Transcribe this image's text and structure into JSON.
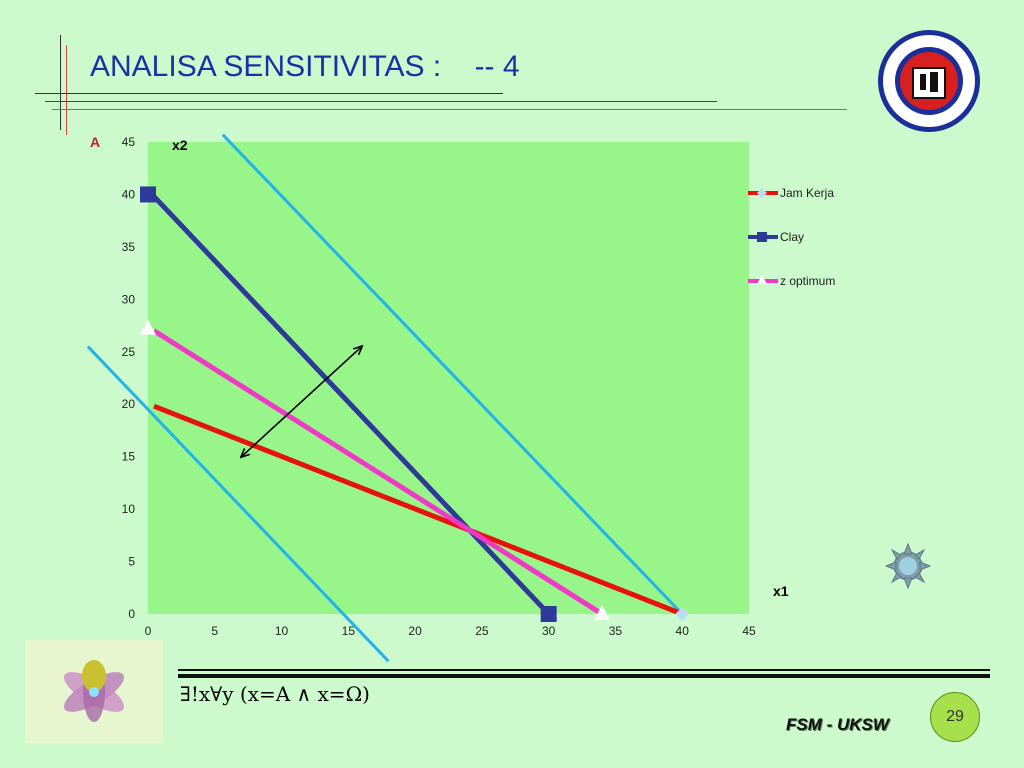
{
  "slide": {
    "title": "ANALISA SENSITIVITAS :    -- 4",
    "point_label": "A",
    "formula": "∃!x∀y (x=A ∧ x=Ω)",
    "footer": "FSM - UKSW",
    "page_number": "29"
  },
  "chart_data": {
    "type": "line",
    "title": "",
    "xlabel": "x1",
    "ylabel": "x2",
    "xlim": [
      0,
      45
    ],
    "ylim": [
      0,
      45
    ],
    "xticks": [
      0,
      5,
      10,
      15,
      20,
      25,
      30,
      35,
      40,
      45
    ],
    "yticks": [
      0,
      5,
      10,
      15,
      20,
      25,
      30,
      35,
      40,
      45
    ],
    "grid": false,
    "plot_background": "#98f58a",
    "legend_position": "right",
    "series": [
      {
        "name": "Jam Kerja",
        "color": "#e8120c",
        "marker": "diamond",
        "points": [
          [
            0,
            20
          ],
          [
            40,
            0
          ]
        ]
      },
      {
        "name": "Clay",
        "color": "#2e3a99",
        "marker": "square",
        "points": [
          [
            0,
            40
          ],
          [
            30,
            0
          ]
        ]
      },
      {
        "name": "z optimum",
        "color": "#f039c6",
        "marker": "triangle",
        "points": [
          [
            0,
            27.2
          ],
          [
            34,
            0
          ]
        ]
      }
    ],
    "iso_lines": [
      {
        "color": "#23b2ea",
        "points": [
          [
            -4.5,
            25.5
          ],
          [
            18,
            -4.5
          ]
        ]
      },
      {
        "color": "#23b2ea",
        "points": [
          [
            5.6,
            45.7
          ],
          [
            40,
            0
          ]
        ]
      }
    ],
    "arrow": {
      "color": "#000000",
      "from": [
        7,
        15
      ],
      "to": [
        16,
        25.5
      ]
    }
  }
}
